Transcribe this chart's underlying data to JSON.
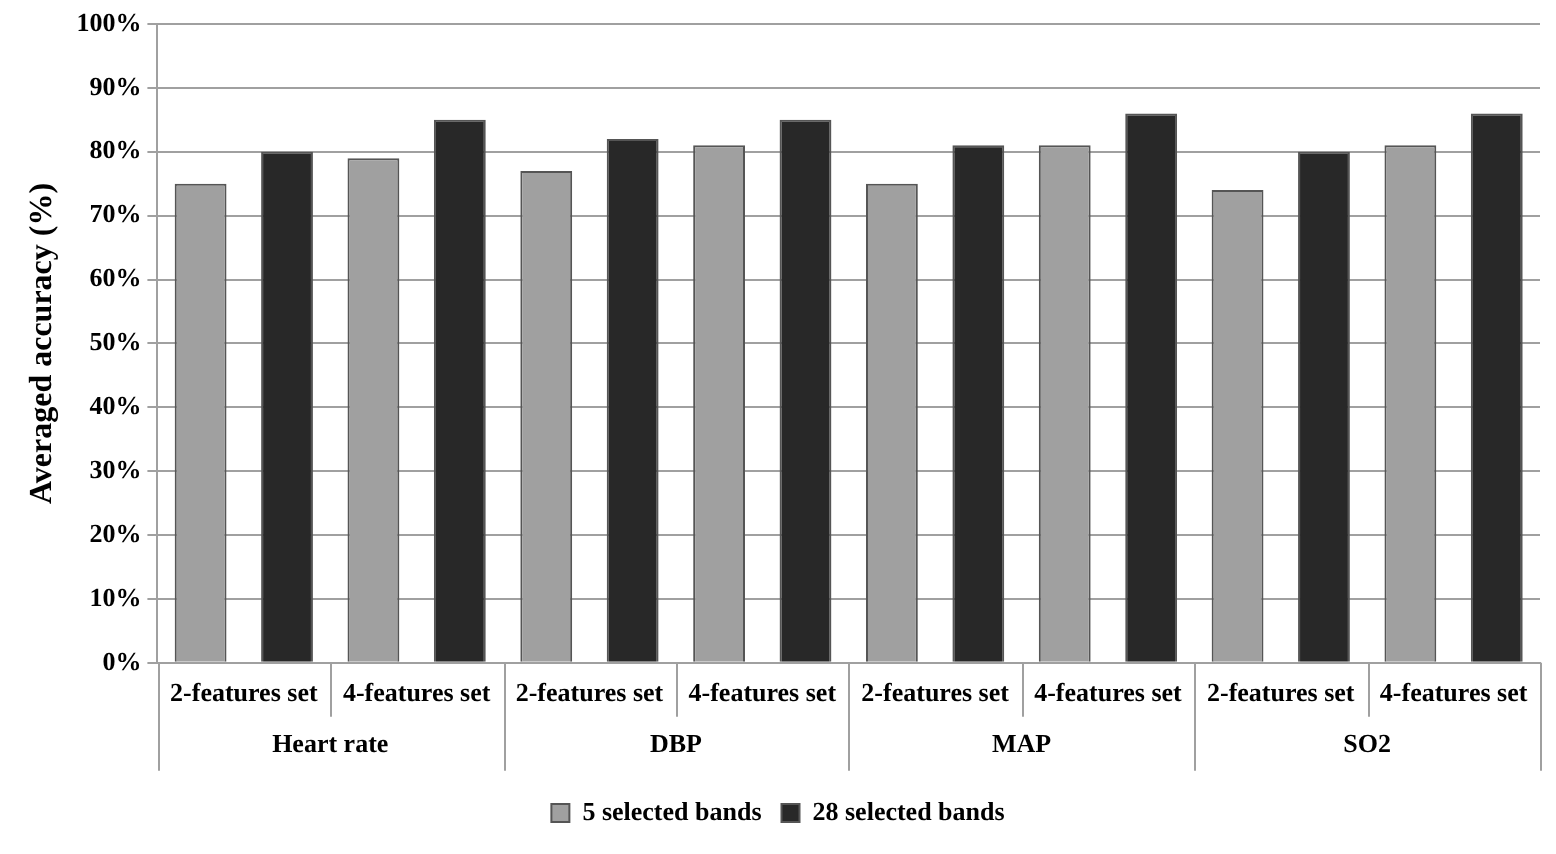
{
  "chart_data": {
    "type": "bar",
    "ylabel": "Averaged accuracy (%)",
    "categories": [
      "2-features set",
      "4-features set",
      "2-features set",
      "4-features set",
      "2-features set",
      "4-features set",
      "2-features set",
      "4-features set"
    ],
    "annotations": [
      "Heart rate",
      "DBP",
      "MAP",
      "SO2"
    ],
    "series": [
      {
        "name": "5 selected bands",
        "color": "#a0a0a0",
        "values": [
          75,
          79,
          77,
          81,
          75,
          81,
          74,
          81
        ]
      },
      {
        "name": "28 selected bands",
        "color": "#282828",
        "values": [
          80,
          85,
          82,
          85,
          81,
          86,
          80,
          86
        ]
      }
    ],
    "ylim": [
      0,
      100
    ],
    "yticks": [
      {
        "value": 0,
        "label": "0%"
      },
      {
        "value": 10,
        "label": "10%"
      },
      {
        "value": 20,
        "label": "20%"
      },
      {
        "value": 30,
        "label": "30%"
      },
      {
        "value": 40,
        "label": "40%"
      },
      {
        "value": 50,
        "label": "50%"
      },
      {
        "value": 60,
        "label": "60%"
      },
      {
        "value": 70,
        "label": "70%"
      },
      {
        "value": 80,
        "label": "80%"
      },
      {
        "value": 90,
        "label": "90%"
      },
      {
        "value": 100,
        "label": "100%"
      }
    ],
    "grid": "y",
    "legend": "bottom"
  }
}
